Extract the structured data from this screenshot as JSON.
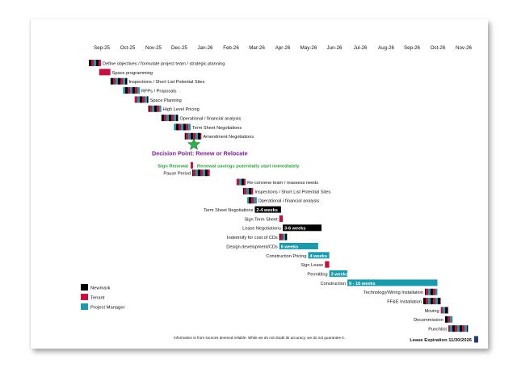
{
  "chart_data": {
    "type": "gantt",
    "months": [
      "Sep-25",
      "Oct-25",
      "Nov-25",
      "Dec-25",
      "Jan-26",
      "Feb-26",
      "Mar-26",
      "Apr-26",
      "May-26",
      "Jun-26",
      "Jul-26",
      "Aug-26",
      "Sep-26",
      "Oct-26",
      "Nov-26"
    ],
    "tasks": [
      {
        "label": "Define objectives / formulate project team / strategic planning",
        "start": "2025-09-01",
        "end": "2025-09-15",
        "pattern": "mix"
      },
      {
        "label": "Space programming",
        "start": "2025-09-13",
        "end": "2025-09-26",
        "pattern": "tenant"
      },
      {
        "label": "Inspections / Short List Potential Sites",
        "start": "2025-09-26",
        "end": "2025-10-16",
        "pattern": "mix"
      },
      {
        "label": "RFPs / Proposals",
        "start": "2025-10-11",
        "end": "2025-10-31",
        "pattern": "mix"
      },
      {
        "label": "Space Planning",
        "start": "2025-10-25",
        "end": "2025-11-10",
        "pattern": "mix"
      },
      {
        "label": "High Level Pricing",
        "start": "2025-11-10",
        "end": "2025-11-25",
        "pattern": "mix"
      },
      {
        "label": "Operational / financial analysis",
        "start": "2025-11-25",
        "end": "2025-12-15",
        "pattern": "mix"
      },
      {
        "label": "Term Sheet Negotiations",
        "start": "2025-12-10",
        "end": "2025-12-30",
        "pattern": "mix"
      },
      {
        "label": "Amendment Negotiations",
        "start": "2025-12-23",
        "end": "2026-01-12",
        "pattern": "mix"
      },
      {
        "label": "Pause Period",
        "start": "2026-01-01",
        "end": "2026-01-22",
        "pattern": "mix"
      },
      {
        "label": "Re-convene team / reassess needs",
        "start": "2026-02-21",
        "end": "2026-03-03",
        "pattern": "mix"
      },
      {
        "label": "Inspections / Short List Potential Sites",
        "start": "2026-02-28",
        "end": "2026-03-12",
        "pattern": "mix"
      },
      {
        "label": "Operational / financial analysis",
        "start": "2026-03-05",
        "end": "2026-03-16",
        "pattern": "mix"
      },
      {
        "label": "Term Sheet Negotiations",
        "start": "2026-03-14",
        "end": "2026-04-14",
        "pattern": "newmark",
        "bar_label": "2-4 weeks"
      },
      {
        "label": "Sign Term Sheet",
        "start": "2026-04-12",
        "end": "2026-04-16",
        "pattern": "tenant"
      },
      {
        "label": "Lease Negotiations",
        "start": "2026-04-16",
        "end": "2026-06-01",
        "pattern": "newmark",
        "bar_label": "3-6 weeks"
      },
      {
        "label": "Indemnify for cost of CDs",
        "start": "2026-04-12",
        "end": "2026-04-21",
        "pattern": "mix"
      },
      {
        "label": "Design development/CDs",
        "start": "2026-04-12",
        "end": "2026-05-28",
        "pattern": "pm",
        "bar_label": "6 weeks"
      },
      {
        "label": "Construction Pricing",
        "start": "2026-05-16",
        "end": "2026-06-10",
        "pattern": "pm",
        "bar_label": "4 weeks"
      },
      {
        "label": "Sign Lease",
        "start": "2026-06-05",
        "end": "2026-06-10",
        "pattern": "tenant"
      },
      {
        "label": "Permitting",
        "start": "2026-06-10",
        "end": "2026-07-01",
        "pattern": "pm",
        "bar_label": "3 weeks"
      },
      {
        "label": "Construction",
        "start": "2026-07-01",
        "end": "2026-10-16",
        "pattern": "pm",
        "bar_label": "9 - 16  weeks"
      },
      {
        "label": "Technology/Wiring Installation",
        "start": "2026-10-01",
        "end": "2026-10-16",
        "pattern": "mix"
      },
      {
        "label": "FF&E Installation",
        "start": "2026-09-29",
        "end": "2026-10-20",
        "pattern": "mix"
      },
      {
        "label": "Moving",
        "start": "2026-10-20",
        "end": "2026-10-29",
        "pattern": "mix"
      },
      {
        "label": "Decommission",
        "start": "2026-10-25",
        "end": "2026-11-03",
        "pattern": "mix"
      },
      {
        "label": "Punchlist",
        "start": "2026-10-29",
        "end": "2026-11-21",
        "pattern": "mix"
      }
    ],
    "decision_point": {
      "label": "Decision Point: Renew or Relocate",
      "date": "2026-01-03"
    },
    "sign_renewal": {
      "label": "Sign Renewal",
      "date": "2025-12-30"
    },
    "renewal_note": "Renewal savings potentially start immediately",
    "lease_expiration": {
      "label": "Lease Expiration 11/30/2026",
      "date": "2026-11-30"
    },
    "legend": [
      {
        "name": "Newmark",
        "color": "#000000"
      },
      {
        "name": "Tenant",
        "color": "#c8103e"
      },
      {
        "name": "Project Manager",
        "color": "#1a9aab"
      }
    ],
    "footer": "Information is from sources deemed reliable. While we do not doubt its accuracy, we do not guarantee it."
  },
  "colors": {
    "newmark": "#000000",
    "tenant": "#c8103e",
    "project_manager": "#1a9aab",
    "decision_text": "#7b1e8c",
    "renewal_text": "#2e9e3a",
    "star_fill": "#2bb34a",
    "star_stroke": "#1a6b2b",
    "lease_expiration_marker": "#1f3a6b"
  }
}
